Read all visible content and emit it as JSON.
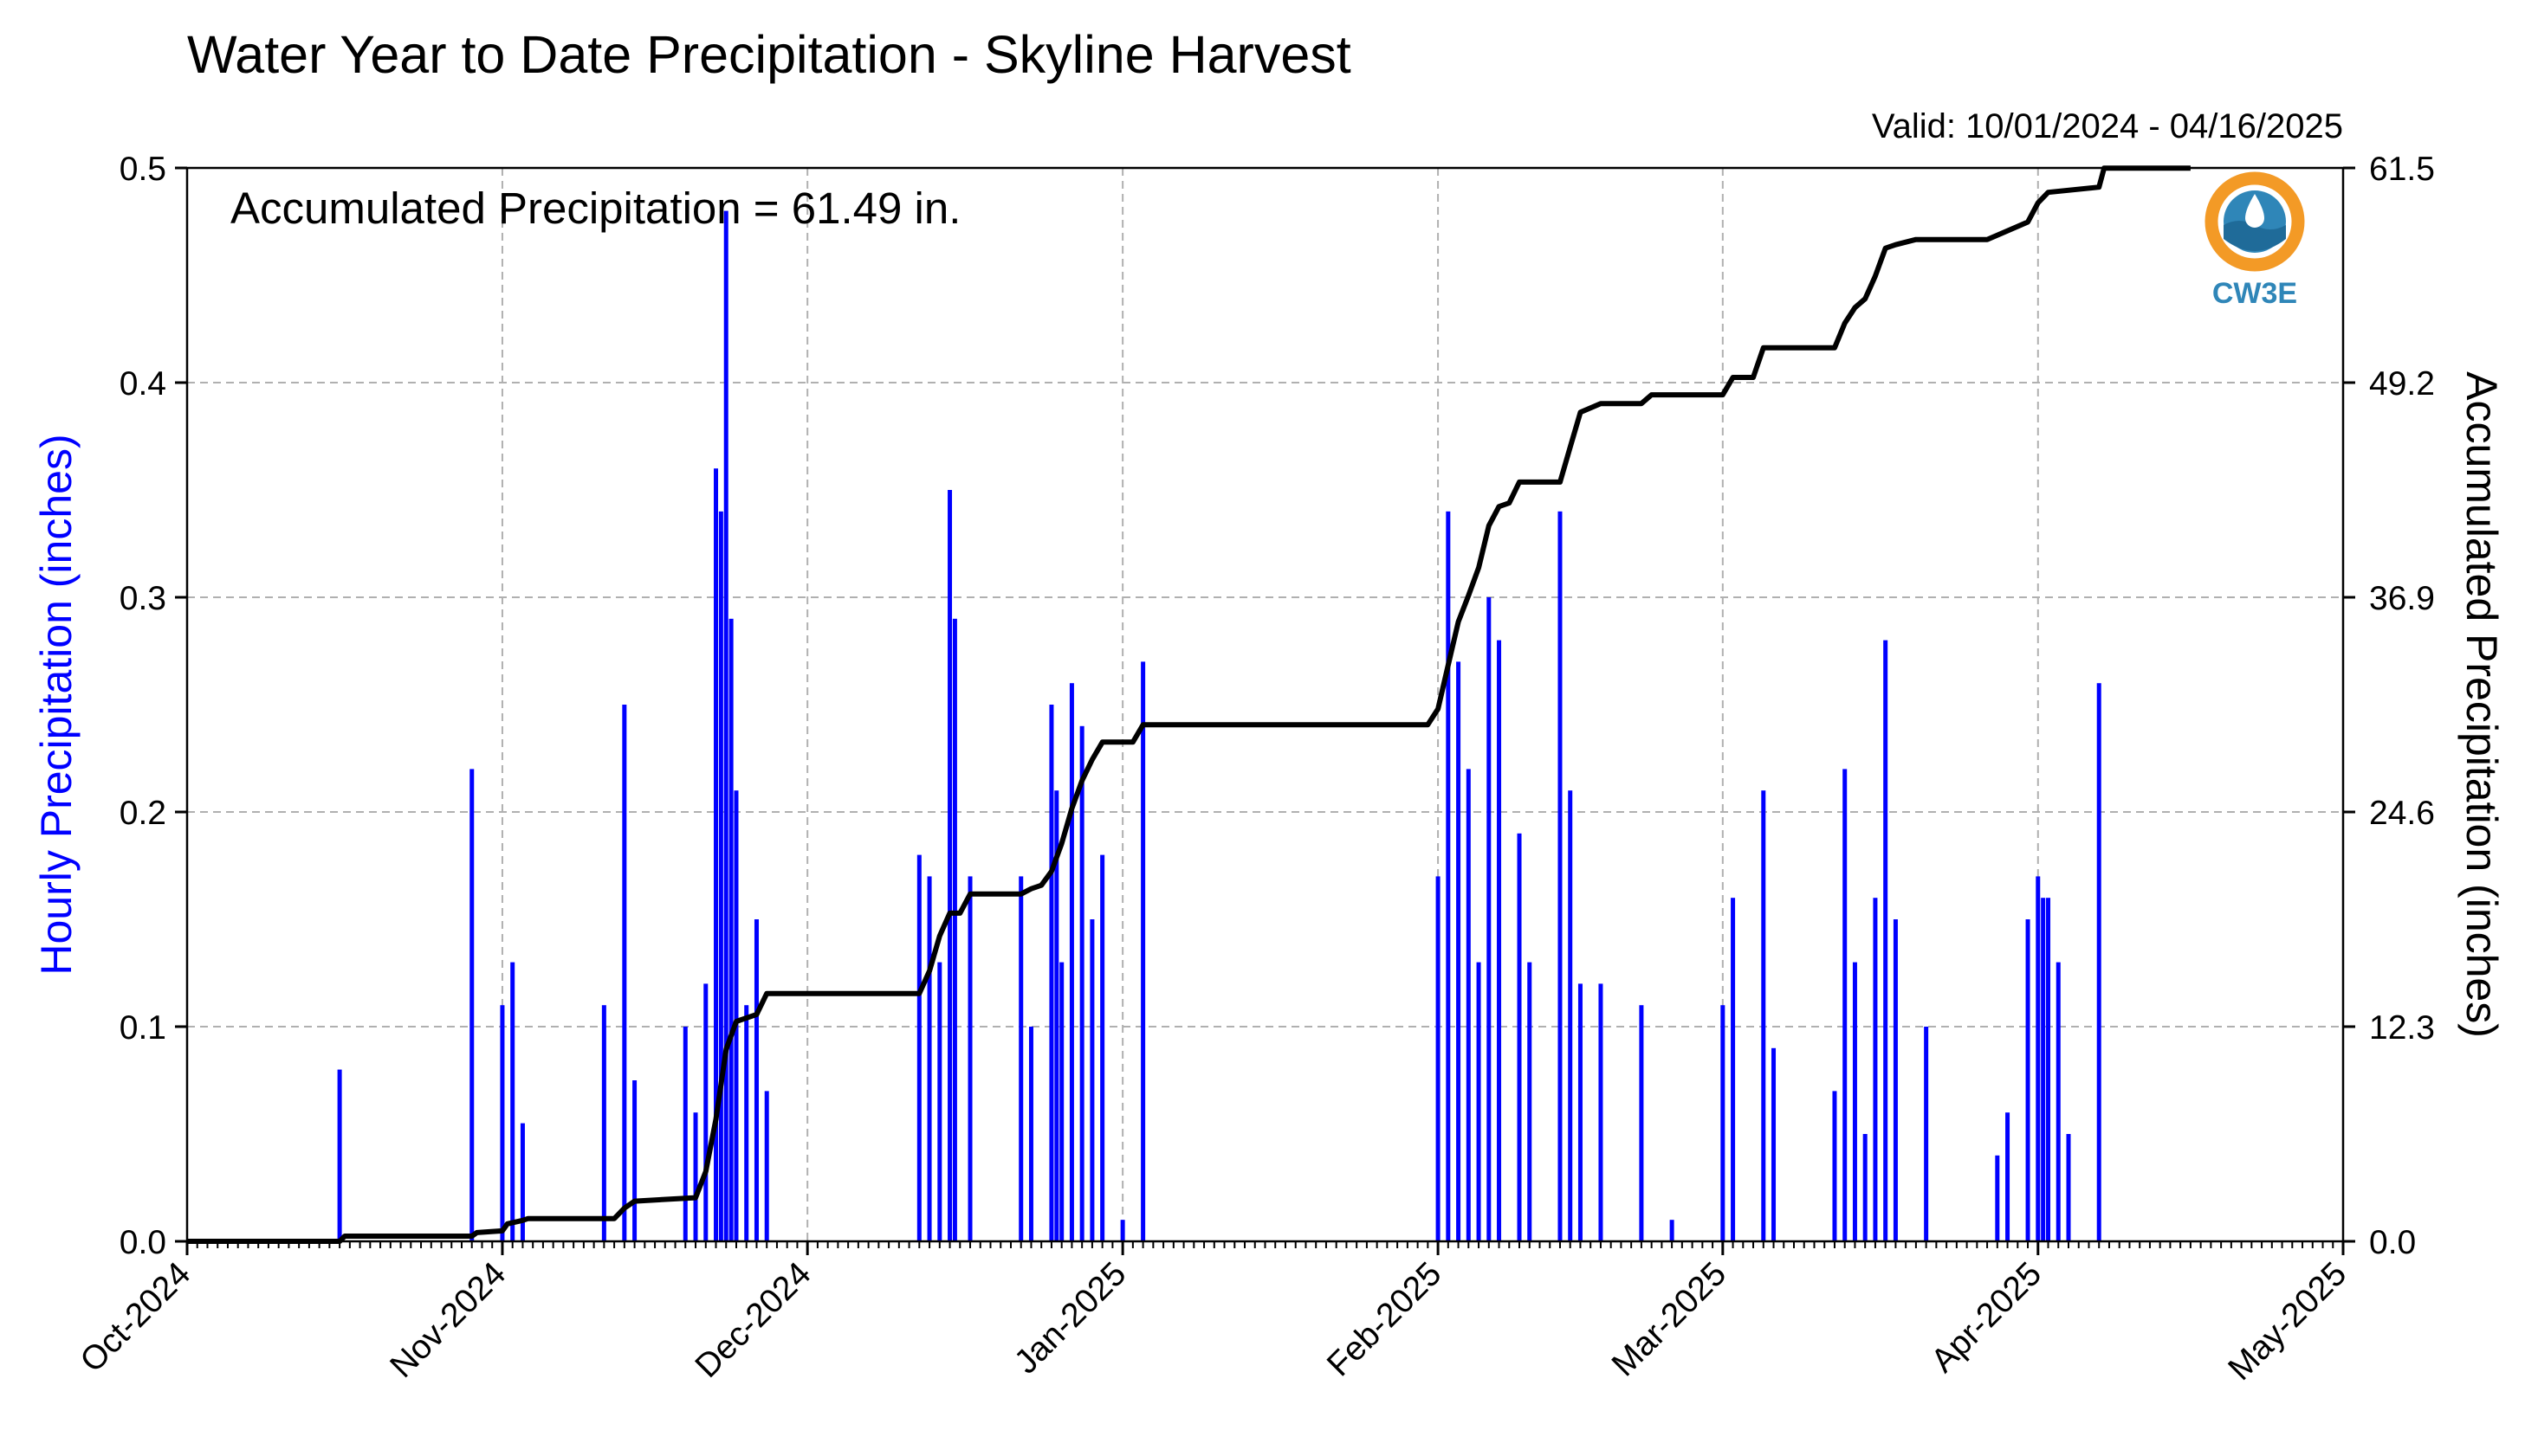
{
  "title": "Water Year to Date Precipitation - Skyline Harvest",
  "valid_label": "Valid: 10/01/2024 - 04/16/2025",
  "annotation": "Accumulated Precipitation = 61.49 in.",
  "logo": {
    "text": "CW3E",
    "icon": "cw3e-logo-icon"
  },
  "colors": {
    "bars": "#0000ff",
    "cumulative": "#000000",
    "grid": "#b0b0b0",
    "left_axis_label": "#0000ff"
  },
  "chart_data": {
    "type": "bar",
    "title": "Water Year to Date Precipitation - Skyline Harvest",
    "x_start": "2024-10-01",
    "x_end": "2025-05-01",
    "x_ticks": [
      "Oct-2024",
      "Nov-2024",
      "Dec-2024",
      "Jan-2025",
      "Feb-2025",
      "Mar-2025",
      "Apr-2025",
      "May-2025"
    ],
    "x_tick_dates": [
      "2024-10-01",
      "2024-11-01",
      "2024-12-01",
      "2025-01-01",
      "2025-02-01",
      "2025-03-01",
      "2025-04-01",
      "2025-05-01"
    ],
    "grid": true,
    "left_axis": {
      "label": "Hourly Precipitation (inches)",
      "range": [
        0,
        0.5
      ],
      "ticks": [
        "0.0",
        "0.1",
        "0.2",
        "0.3",
        "0.4",
        "0.5"
      ]
    },
    "right_axis": {
      "label": "Accumulated Precipitation (inches)",
      "range": [
        0,
        61.5
      ],
      "ticks": [
        "0.0",
        "12.3",
        "24.6",
        "36.9",
        "49.2",
        "61.5"
      ]
    },
    "series": [
      {
        "axis": "left",
        "type": "bar",
        "values": [
          [
            "2024-10-16",
            0.08
          ],
          [
            "2024-10-29",
            0.22
          ],
          [
            "2024-11-01",
            0.11
          ],
          [
            "2024-11-02",
            0.13
          ],
          [
            "2024-11-03",
            0.055
          ],
          [
            "2024-11-11",
            0.11
          ],
          [
            "2024-11-13",
            0.25
          ],
          [
            "2024-11-14",
            0.075
          ],
          [
            "2024-11-19",
            0.1
          ],
          [
            "2024-11-20",
            0.06
          ],
          [
            "2024-11-21",
            0.12
          ],
          [
            "2024-11-22",
            0.36
          ],
          [
            "2024-11-22 12:00",
            0.34
          ],
          [
            "2024-11-23",
            0.48
          ],
          [
            "2024-11-23 12:00",
            0.29
          ],
          [
            "2024-11-24",
            0.21
          ],
          [
            "2024-11-25",
            0.11
          ],
          [
            "2024-11-26",
            0.15
          ],
          [
            "2024-11-27",
            0.07
          ],
          [
            "2024-12-12",
            0.18
          ],
          [
            "2024-12-13",
            0.17
          ],
          [
            "2024-12-14",
            0.13
          ],
          [
            "2024-12-15",
            0.35
          ],
          [
            "2024-12-15 12:00",
            0.29
          ],
          [
            "2024-12-17",
            0.17
          ],
          [
            "2024-12-22",
            0.17
          ],
          [
            "2024-12-23",
            0.1
          ],
          [
            "2024-12-25",
            0.25
          ],
          [
            "2024-12-25 12:00",
            0.21
          ],
          [
            "2024-12-26",
            0.13
          ],
          [
            "2024-12-27",
            0.26
          ],
          [
            "2024-12-28",
            0.24
          ],
          [
            "2024-12-29",
            0.15
          ],
          [
            "2024-12-30",
            0.18
          ],
          [
            "2025-01-01",
            0.01
          ],
          [
            "2025-01-03",
            0.27
          ],
          [
            "2025-02-01",
            0.17
          ],
          [
            "2025-02-02",
            0.34
          ],
          [
            "2025-02-03",
            0.27
          ],
          [
            "2025-02-04",
            0.22
          ],
          [
            "2025-02-05",
            0.13
          ],
          [
            "2025-02-06",
            0.3
          ],
          [
            "2025-02-07",
            0.28
          ],
          [
            "2025-02-09",
            0.19
          ],
          [
            "2025-02-10",
            0.13
          ],
          [
            "2025-02-13",
            0.34
          ],
          [
            "2025-02-14",
            0.21
          ],
          [
            "2025-02-15",
            0.12
          ],
          [
            "2025-02-17",
            0.12
          ],
          [
            "2025-02-21",
            0.11
          ],
          [
            "2025-02-24",
            0.01
          ],
          [
            "2025-03-01",
            0.11
          ],
          [
            "2025-03-02",
            0.16
          ],
          [
            "2025-03-05",
            0.21
          ],
          [
            "2025-03-06",
            0.09
          ],
          [
            "2025-03-12",
            0.07
          ],
          [
            "2025-03-13",
            0.22
          ],
          [
            "2025-03-14",
            0.13
          ],
          [
            "2025-03-15",
            0.05
          ],
          [
            "2025-03-16",
            0.16
          ],
          [
            "2025-03-17",
            0.28
          ],
          [
            "2025-03-18",
            0.15
          ],
          [
            "2025-03-21",
            0.1
          ],
          [
            "2025-03-28",
            0.04
          ],
          [
            "2025-03-29",
            0.06
          ],
          [
            "2025-03-31",
            0.15
          ],
          [
            "2025-04-01",
            0.17
          ],
          [
            "2025-04-01 12:00",
            0.16
          ],
          [
            "2025-04-02",
            0.16
          ],
          [
            "2025-04-03",
            0.13
          ],
          [
            "2025-04-04",
            0.05
          ],
          [
            "2025-04-07",
            0.26
          ]
        ]
      },
      {
        "axis": "right",
        "type": "line",
        "values": [
          [
            "2024-10-01",
            0.0
          ],
          [
            "2024-10-16",
            0.0
          ],
          [
            "2024-10-16 12:00",
            0.3
          ],
          [
            "2024-10-29",
            0.3
          ],
          [
            "2024-10-29 12:00",
            0.5
          ],
          [
            "2024-11-01",
            0.6
          ],
          [
            "2024-11-01 12:00",
            1.0
          ],
          [
            "2024-11-03",
            1.2
          ],
          [
            "2024-11-03 12:00",
            1.3
          ],
          [
            "2024-11-12",
            1.3
          ],
          [
            "2024-11-13",
            1.9
          ],
          [
            "2024-11-14",
            2.3
          ],
          [
            "2024-11-20",
            2.5
          ],
          [
            "2024-11-21",
            4.0
          ],
          [
            "2024-11-22",
            7.0
          ],
          [
            "2024-11-23",
            11.0
          ],
          [
            "2024-11-24",
            12.6
          ],
          [
            "2024-11-26",
            13.0
          ],
          [
            "2024-11-27",
            14.2
          ],
          [
            "2024-12-12",
            14.2
          ],
          [
            "2024-12-13",
            15.5
          ],
          [
            "2024-12-14",
            17.5
          ],
          [
            "2024-12-15",
            18.8
          ],
          [
            "2024-12-16",
            18.8
          ],
          [
            "2024-12-17",
            19.9
          ],
          [
            "2024-12-22",
            19.9
          ],
          [
            "2024-12-23",
            20.2
          ],
          [
            "2024-12-24",
            20.4
          ],
          [
            "2024-12-25",
            21.2
          ],
          [
            "2024-12-26",
            22.8
          ],
          [
            "2024-12-27",
            24.8
          ],
          [
            "2024-12-28",
            26.4
          ],
          [
            "2024-12-29",
            27.6
          ],
          [
            "2024-12-30",
            28.6
          ],
          [
            "2025-01-02",
            28.6
          ],
          [
            "2025-01-03",
            29.6
          ],
          [
            "2025-01-31",
            29.6
          ],
          [
            "2025-02-01",
            30.5
          ],
          [
            "2025-02-02",
            33.0
          ],
          [
            "2025-02-03",
            35.5
          ],
          [
            "2025-02-04",
            37.0
          ],
          [
            "2025-02-05",
            38.6
          ],
          [
            "2025-02-06",
            41.0
          ],
          [
            "2025-02-07",
            42.1
          ],
          [
            "2025-02-08",
            42.3
          ],
          [
            "2025-02-09",
            43.5
          ],
          [
            "2025-02-13",
            43.5
          ],
          [
            "2025-02-14",
            45.5
          ],
          [
            "2025-02-15",
            47.5
          ],
          [
            "2025-02-17",
            48.0
          ],
          [
            "2025-02-21",
            48.0
          ],
          [
            "2025-02-22",
            48.5
          ],
          [
            "2025-03-01",
            48.5
          ],
          [
            "2025-03-02",
            49.5
          ],
          [
            "2025-03-04",
            49.5
          ],
          [
            "2025-03-05",
            51.2
          ],
          [
            "2025-03-12",
            51.2
          ],
          [
            "2025-03-13",
            52.6
          ],
          [
            "2025-03-14",
            53.5
          ],
          [
            "2025-03-15",
            54.0
          ],
          [
            "2025-03-16",
            55.3
          ],
          [
            "2025-03-17",
            56.9
          ],
          [
            "2025-03-18",
            57.1
          ],
          [
            "2025-03-20",
            57.4
          ],
          [
            "2025-03-27",
            57.4
          ],
          [
            "2025-03-29",
            57.9
          ],
          [
            "2025-03-31",
            58.4
          ],
          [
            "2025-04-01",
            59.5
          ],
          [
            "2025-04-02",
            60.1
          ],
          [
            "2025-04-07",
            60.4
          ],
          [
            "2025-04-07 12:00",
            61.49
          ],
          [
            "2025-04-16",
            61.49
          ]
        ]
      }
    ]
  }
}
